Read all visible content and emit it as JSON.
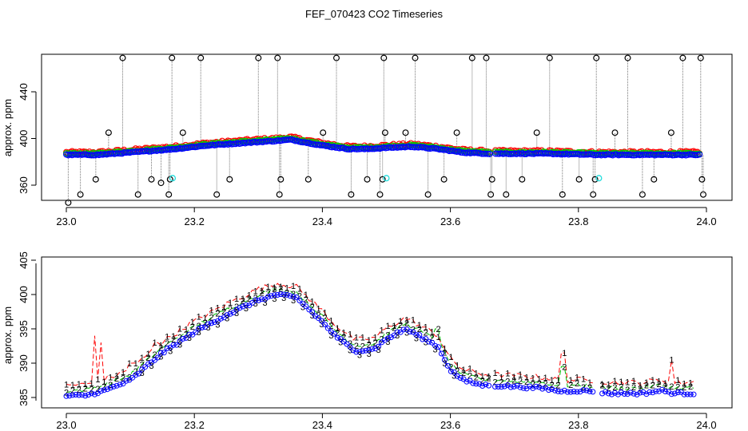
{
  "title": "FEF_070423  CO2 Timeseries",
  "chart_data": [
    {
      "type": "scatter",
      "panel": "top",
      "xlabel": "",
      "ylabel": "approx. ppm",
      "xlim": [
        23.0,
        24.0
      ],
      "ylim": [
        342,
        472
      ],
      "xticks": [
        23.0,
        23.2,
        23.4,
        23.6,
        23.8,
        24.0
      ],
      "xtick_labels": [
        "23.0",
        "23.2",
        "23.4",
        "23.6",
        "23.8",
        "24.0"
      ],
      "yticks": [
        360,
        400,
        440
      ],
      "ytick_labels": [
        "360",
        "400",
        "440"
      ],
      "baseline_knots": [
        [
          23.0,
          386
        ],
        [
          23.05,
          386
        ],
        [
          23.1,
          388
        ],
        [
          23.17,
          391
        ],
        [
          23.22,
          394
        ],
        [
          23.3,
          397
        ],
        [
          23.33,
          398
        ],
        [
          23.35,
          399
        ],
        [
          23.4,
          394
        ],
        [
          23.44,
          391
        ],
        [
          23.47,
          391
        ],
        [
          23.5,
          392
        ],
        [
          23.54,
          393
        ],
        [
          23.58,
          391
        ],
        [
          23.62,
          388
        ],
        [
          23.66,
          387
        ],
        [
          23.75,
          387
        ],
        [
          23.83,
          386
        ],
        [
          23.9,
          386
        ],
        [
          23.99,
          386
        ]
      ],
      "series": [
        {
          "name": "1",
          "color": "#ff0000",
          "offset": 2.0,
          "noise": 2.2
        },
        {
          "name": "2",
          "color": "#00cc00",
          "offset": 1.0,
          "noise": 1.5
        },
        {
          "name": "3",
          "color": "#0000ff",
          "offset": 0.0,
          "noise": 0.8
        }
      ],
      "outliers_color": "#000000",
      "outliers": [
        [
          23.003,
          345
        ],
        [
          23.022,
          352
        ],
        [
          23.046,
          365
        ],
        [
          23.066,
          405
        ],
        [
          23.088,
          469
        ],
        [
          23.112,
          352
        ],
        [
          23.133,
          365
        ],
        [
          23.148,
          362
        ],
        [
          23.16,
          352
        ],
        [
          23.162,
          365
        ],
        [
          23.165,
          469
        ],
        [
          23.182,
          405
        ],
        [
          23.21,
          469
        ],
        [
          23.235,
          352
        ],
        [
          23.255,
          365
        ],
        [
          23.3,
          469
        ],
        [
          23.33,
          469
        ],
        [
          23.333,
          352
        ],
        [
          23.335,
          365
        ],
        [
          23.378,
          365
        ],
        [
          23.401,
          405
        ],
        [
          23.422,
          469
        ],
        [
          23.445,
          352
        ],
        [
          23.47,
          365
        ],
        [
          23.49,
          352
        ],
        [
          23.494,
          365
        ],
        [
          23.496,
          469
        ],
        [
          23.498,
          405
        ],
        [
          23.53,
          405
        ],
        [
          23.545,
          469
        ],
        [
          23.565,
          352
        ],
        [
          23.59,
          365
        ],
        [
          23.61,
          405
        ],
        [
          23.634,
          469
        ],
        [
          23.656,
          469
        ],
        [
          23.663,
          352
        ],
        [
          23.665,
          365
        ],
        [
          23.687,
          352
        ],
        [
          23.712,
          365
        ],
        [
          23.735,
          405
        ],
        [
          23.755,
          469
        ],
        [
          23.775,
          352
        ],
        [
          23.801,
          365
        ],
        [
          23.823,
          352
        ],
        [
          23.826,
          365
        ],
        [
          23.828,
          469
        ],
        [
          23.857,
          405
        ],
        [
          23.877,
          469
        ],
        [
          23.9,
          352
        ],
        [
          23.918,
          365
        ],
        [
          23.945,
          405
        ],
        [
          23.963,
          469
        ],
        [
          23.991,
          469
        ],
        [
          23.993,
          365
        ],
        [
          23.995,
          352
        ]
      ],
      "cyan_points": [
        [
          23.166,
          366
        ],
        [
          23.5,
          366
        ],
        [
          23.832,
          366
        ]
      ]
    },
    {
      "type": "line",
      "panel": "bottom",
      "xlabel": "",
      "ylabel": "approx. ppm",
      "xlim": [
        23.0,
        24.0
      ],
      "ylim": [
        384.3,
        405.0
      ],
      "xticks": [
        23.0,
        23.2,
        23.4,
        23.6,
        23.8,
        24.0
      ],
      "xtick_labels": [
        "23.0",
        "23.2",
        "23.4",
        "23.6",
        "23.8",
        "24.0"
      ],
      "yticks": [
        385,
        390,
        395,
        400,
        405
      ],
      "ytick_labels": [
        "385",
        "390",
        "395",
        "400",
        "405"
      ],
      "baseline_knots": [
        [
          23.0,
          385.2
        ],
        [
          23.03,
          385.3
        ],
        [
          23.06,
          386
        ],
        [
          23.1,
          387.5
        ],
        [
          23.15,
          391.5
        ],
        [
          23.2,
          394.5
        ],
        [
          23.25,
          397
        ],
        [
          23.3,
          399.2
        ],
        [
          23.33,
          400
        ],
        [
          23.36,
          399.5
        ],
        [
          23.4,
          396
        ],
        [
          23.42,
          394
        ],
        [
          23.45,
          391.8
        ],
        [
          23.48,
          392
        ],
        [
          23.5,
          393.5
        ],
        [
          23.53,
          395
        ],
        [
          23.56,
          393.5
        ],
        [
          23.58,
          392.5
        ],
        [
          23.6,
          389
        ],
        [
          23.62,
          387.5
        ],
        [
          23.65,
          386.8
        ],
        [
          23.7,
          386.6
        ],
        [
          23.75,
          386.3
        ],
        [
          23.77,
          385.9
        ],
        [
          23.8,
          386
        ],
        [
          23.82,
          385.9
        ],
        [
          23.85,
          385.6
        ],
        [
          23.9,
          385.6
        ],
        [
          23.93,
          386
        ],
        [
          23.95,
          385.6
        ],
        [
          23.99,
          385.6
        ]
      ],
      "gaps": [
        [
          23.662,
          23.668
        ],
        [
          23.823,
          23.833
        ]
      ],
      "series": [
        {
          "name": "1",
          "label_char": "1",
          "color": "#ff0000",
          "offset": 1.6,
          "noise": 0.8,
          "linestyle": "dashed",
          "spikes": [
            [
              23.045,
              394
            ],
            [
              23.055,
              393
            ],
            [
              23.775,
              391.5
            ],
            [
              23.945,
              390.5
            ],
            [
              23.14,
              393
            ],
            [
              23.1,
              390
            ]
          ]
        },
        {
          "name": "2",
          "label_char": "2",
          "color": "#00bb00",
          "offset": 0.8,
          "noise": 0.6,
          "linestyle": "dashed",
          "spikes": [
            [
              23.775,
              389.5
            ],
            [
              23.58,
              395
            ]
          ]
        },
        {
          "name": "3",
          "label_char": "3",
          "color": "#0000ff",
          "offset": 0.0,
          "noise": 0.4,
          "linestyle": "solid",
          "spikes": []
        }
      ]
    }
  ]
}
